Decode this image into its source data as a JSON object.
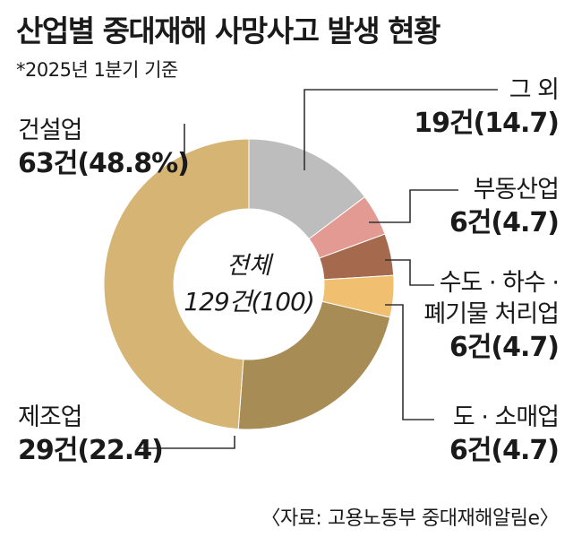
{
  "title": "산업별 중대재해 사망사고 발생 현황",
  "subtitle": "*2025년 1분기 기준",
  "source": "〈자료: 고용노동부 중대재해알림e〉",
  "center": {
    "label": "전체",
    "value": "129건(100)"
  },
  "labels": {
    "construction": {
      "name": "건설업",
      "value": "63건(48.8%)"
    },
    "manufacturing": {
      "name": "제조업",
      "value": "29건(22.4)"
    },
    "other": {
      "name": "그 외",
      "value": "19건(14.7)"
    },
    "realestate": {
      "name": "부동산업",
      "value": "6건(4.7)"
    },
    "water1": "수도 · 하수 ·",
    "water2": "폐기물 처리업",
    "water_value": "6건(4.7)",
    "retail": {
      "name": "도 · 소매업",
      "value": "6건(4.7)"
    }
  },
  "chart_data": {
    "type": "pie",
    "title": "산업별 중대재해 사망사고 발생 현황",
    "subtitle": "*2025년 1분기 기준",
    "total": 129,
    "slices": [
      {
        "name": "그 외",
        "count": 19,
        "percent": 14.7,
        "color": "#bdbdbd"
      },
      {
        "name": "부동산업",
        "count": 6,
        "percent": 4.7,
        "color": "#e39a93"
      },
      {
        "name": "수도 · 하수 · 폐기물 처리업",
        "count": 6,
        "percent": 4.7,
        "color": "#a5694e"
      },
      {
        "name": "도 · 소매업",
        "count": 6,
        "percent": 4.7,
        "color": "#f0c070"
      },
      {
        "name": "제조업",
        "count": 29,
        "percent": 22.4,
        "color": "#a78c56"
      },
      {
        "name": "건설업",
        "count": 63,
        "percent": 48.8,
        "color": "#d6b574"
      }
    ]
  }
}
